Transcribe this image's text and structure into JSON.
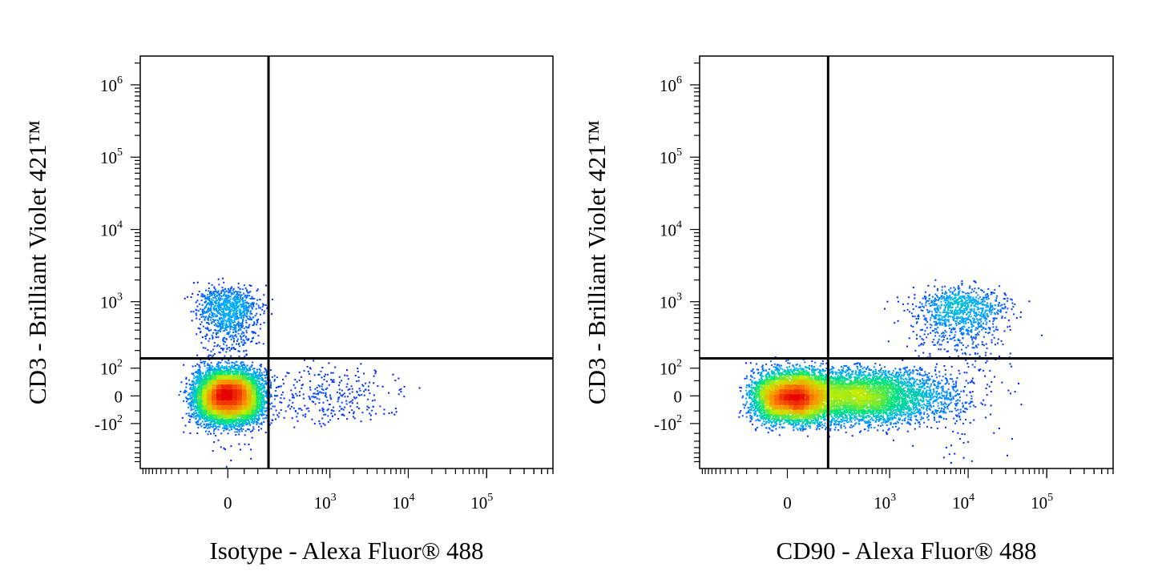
{
  "chart_data": [
    {
      "type": "scatter",
      "title": "",
      "xlabel": "Isotype - Alexa Fluor® 488",
      "ylabel": "CD3 - Brilliant Violet 421™",
      "x_scale": "biexponential",
      "y_scale": "biexponential",
      "x_ticks": [
        {
          "value": 0,
          "base": "0",
          "exp": ""
        },
        {
          "value": 1000,
          "base": "10",
          "exp": "3"
        },
        {
          "value": 10000,
          "base": "10",
          "exp": "4"
        },
        {
          "value": 100000,
          "base": "10",
          "exp": "5"
        }
      ],
      "y_ticks": [
        {
          "value": 1000000,
          "base": "10",
          "exp": "6"
        },
        {
          "value": 100000,
          "base": "10",
          "exp": "5"
        },
        {
          "value": 10000,
          "base": "10",
          "exp": "4"
        },
        {
          "value": 1000,
          "base": "10",
          "exp": "3"
        },
        {
          "value": 100,
          "base": "10",
          "exp": "2"
        },
        {
          "value": 0,
          "base": "0",
          "exp": ""
        },
        {
          "value": -100,
          "base": "-10",
          "exp": "2"
        }
      ],
      "quadrant_gate": {
        "x": 150,
        "y": 150
      },
      "populations": [
        {
          "x": 0,
          "y": 0,
          "sx": 55,
          "sy": 45,
          "n": 8000
        },
        {
          "x": 0,
          "y": 700,
          "sx": 50,
          "sy": 400,
          "n": 1100
        },
        {
          "x": 900,
          "y": 0,
          "sx": 0.45,
          "sy": 50,
          "n": 320,
          "x_log": true
        }
      ],
      "grid": false,
      "legend": "none"
    },
    {
      "type": "scatter",
      "title": "",
      "xlabel": "CD90 - Alexa Fluor® 488",
      "ylabel": "CD3 - Brilliant Violet 421™",
      "x_scale": "biexponential",
      "y_scale": "biexponential",
      "x_ticks": [
        {
          "value": 0,
          "base": "0",
          "exp": ""
        },
        {
          "value": 1000,
          "base": "10",
          "exp": "3"
        },
        {
          "value": 10000,
          "base": "10",
          "exp": "4"
        },
        {
          "value": 100000,
          "base": "10",
          "exp": "5"
        }
      ],
      "y_ticks": [
        {
          "value": 1000000,
          "base": "10",
          "exp": "6"
        },
        {
          "value": 100000,
          "base": "10",
          "exp": "5"
        },
        {
          "value": 10000,
          "base": "10",
          "exp": "4"
        },
        {
          "value": 1000,
          "base": "10",
          "exp": "3"
        },
        {
          "value": 100,
          "base": "10",
          "exp": "2"
        },
        {
          "value": 0,
          "base": "0",
          "exp": ""
        },
        {
          "value": -100,
          "base": "-10",
          "exp": "2"
        }
      ],
      "quadrant_gate": {
        "x": 150,
        "y": 150
      },
      "populations": [
        {
          "x": 0,
          "y": 0,
          "sx": 60,
          "sy": 45,
          "n": 4500
        },
        {
          "x": 400,
          "y": 0,
          "sx": 0.55,
          "sy": 45,
          "n": 5000,
          "x_log": true
        },
        {
          "x": 8000,
          "y": 700,
          "sx": 0.3,
          "sy": 400,
          "n": 1100,
          "x_log": true
        }
      ],
      "grid": false,
      "legend": "none"
    }
  ]
}
